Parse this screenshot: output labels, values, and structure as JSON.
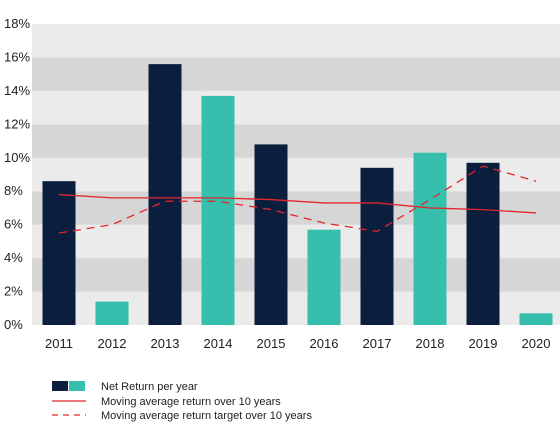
{
  "chart_data": {
    "type": "bar",
    "categories": [
      "2011",
      "2012",
      "2013",
      "2014",
      "2015",
      "2016",
      "2017",
      "2018",
      "2019",
      "2020"
    ],
    "series": [
      {
        "name": "Net Return per year",
        "type": "bar",
        "values": [
          8.6,
          1.4,
          15.6,
          13.7,
          10.8,
          5.7,
          9.4,
          10.3,
          9.7,
          0.7
        ]
      },
      {
        "name": "Moving average return over 10 years",
        "type": "line",
        "values": [
          7.8,
          7.6,
          7.6,
          7.6,
          7.5,
          7.3,
          7.3,
          7.0,
          6.9,
          6.7
        ]
      },
      {
        "name": "Moving average return target over 10 years",
        "type": "line-dashed",
        "values": [
          5.5,
          6.0,
          7.4,
          7.4,
          6.9,
          6.1,
          5.6,
          7.5,
          9.5,
          8.6
        ]
      }
    ],
    "y_ticks": [
      "0%",
      "2%",
      "4%",
      "6%",
      "8%",
      "10%",
      "12%",
      "14%",
      "16%",
      "18%"
    ],
    "ylim": [
      0,
      18
    ],
    "title": "",
    "xlabel": "",
    "ylabel": "",
    "grid": true,
    "legend_position": "bottom-left",
    "colors": {
      "bar_dark": "#0c1e3e",
      "bar_teal": "#36bfad",
      "line": "#e2262c",
      "band_gray": "#d6d6d6",
      "band_light": "#ebebeb"
    }
  }
}
